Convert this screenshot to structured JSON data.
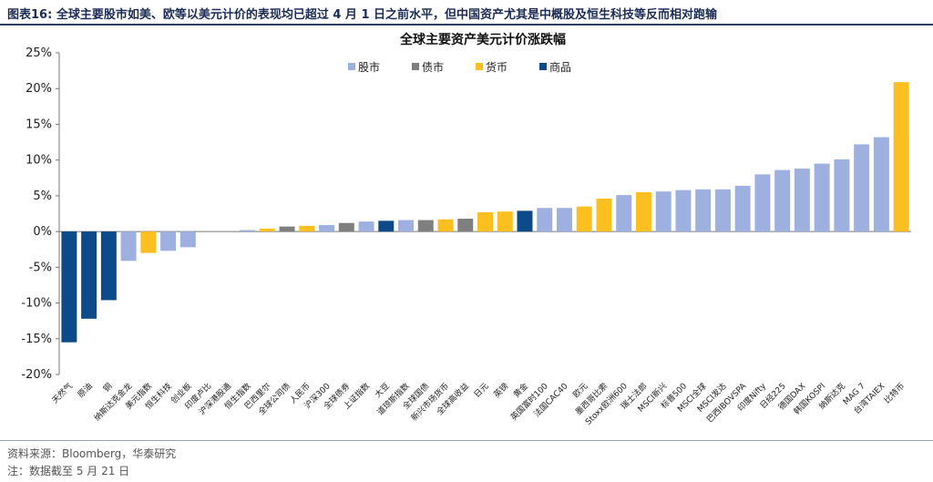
{
  "figure": {
    "title": "图表16:  全球主要股市如美、欧等以美元计价的表现均已超过 4 月 1 日之前水平，但中国资产尤其是中概股及恒生科技等反而相对跑输",
    "source": "资料来源：Bloomberg，华泰研究",
    "note": "注：数据截至 5 月 21 日"
  },
  "colors": {
    "股市": "#9db0df",
    "债市": "#7f7f7f",
    "货币": "#fbbf1f",
    "商品": "#0d4a8a"
  },
  "chart_data": {
    "type": "bar",
    "title": "全球主要资产美元计价涨跌幅",
    "ylim": [
      -20,
      25
    ],
    "yticks": [
      "-20%",
      "-15%",
      "-10%",
      "-5%",
      "0%",
      "5%",
      "10%",
      "15%",
      "20%",
      "25%"
    ],
    "ytick_values": [
      -20,
      -15,
      -10,
      -5,
      0,
      5,
      10,
      15,
      20,
      25
    ],
    "legend": [
      "股市",
      "债市",
      "货币",
      "商品"
    ],
    "legend_position": "top-center",
    "grid": false,
    "categories": [
      "天然气",
      "原油",
      "铜",
      "纳斯达克金龙",
      "美元指数",
      "恒生科技",
      "创业板",
      "印度卢比",
      "沪深港股通",
      "恒生指数",
      "巴西里尔",
      "全球公司债",
      "人民币",
      "沪深300",
      "全球债券",
      "上证指数",
      "大豆",
      "道琼斯指数",
      "全球国债",
      "新兴市场货币",
      "全球高收益",
      "日元",
      "英镑",
      "黄金",
      "英国富时100",
      "法国CAC40",
      "欧元",
      "墨西哥比索",
      "Stoxx欧洲600",
      "瑞士法郎",
      "MSCI新兴",
      "标普500",
      "MSCI全球",
      "MSCI发达",
      "巴西IBOVSPA",
      "印度Nifty",
      "日经225",
      "德国DAX",
      "韩国KOSPI",
      "纳斯达克",
      "MAG 7",
      "台湾TAIEX",
      "比特币"
    ],
    "values": [
      -15.5,
      -12.2,
      -9.6,
      -4.1,
      -3.0,
      -2.7,
      -2.2,
      0.0,
      0.0,
      0.2,
      0.4,
      0.7,
      0.8,
      0.9,
      1.2,
      1.4,
      1.5,
      1.6,
      1.6,
      1.7,
      1.8,
      2.7,
      2.8,
      2.9,
      3.3,
      3.3,
      3.5,
      4.6,
      5.1,
      5.5,
      5.6,
      5.8,
      5.9,
      5.9,
      6.4,
      8.0,
      8.6,
      8.8,
      9.5,
      10.1,
      12.2,
      13.2,
      20.9
    ],
    "groups": [
      "商品",
      "商品",
      "商品",
      "股市",
      "货币",
      "股市",
      "股市",
      "货币",
      "股市",
      "股市",
      "货币",
      "债市",
      "货币",
      "股市",
      "债市",
      "股市",
      "商品",
      "股市",
      "债市",
      "货币",
      "债市",
      "货币",
      "货币",
      "商品",
      "股市",
      "股市",
      "货币",
      "货币",
      "股市",
      "货币",
      "股市",
      "股市",
      "股市",
      "股市",
      "股市",
      "股市",
      "股市",
      "股市",
      "股市",
      "股市",
      "股市",
      "股市",
      "货币"
    ]
  }
}
